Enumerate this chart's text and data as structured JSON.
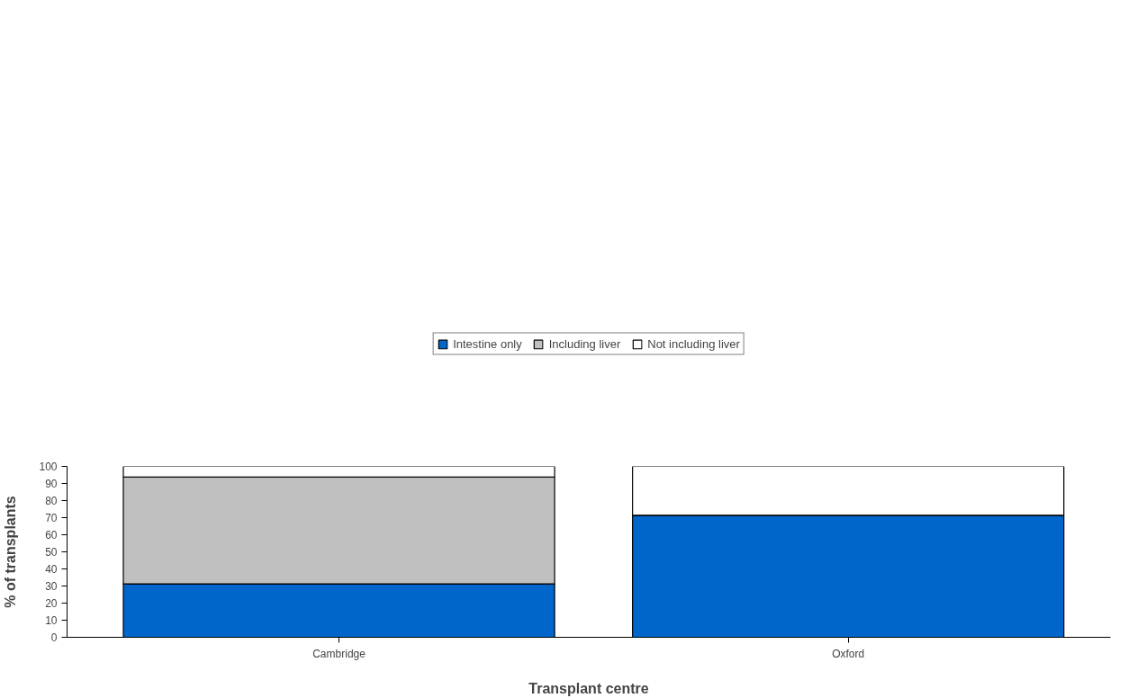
{
  "chart_data": {
    "type": "bar",
    "stacked": true,
    "categories": [
      "Cambridge",
      "Oxford"
    ],
    "series": [
      {
        "name": "Intestine only",
        "color": "#0066cc",
        "values": [
          31.3,
          71.4
        ]
      },
      {
        "name": "Including liver",
        "color": "#c0c0c0",
        "values": [
          62.5,
          0
        ]
      },
      {
        "name": "Not including liver",
        "color": "#ffffff",
        "values": [
          6.2,
          28.6
        ]
      }
    ],
    "xlabel": "Transplant centre",
    "ylabel": "% of transplants",
    "ylim": [
      0,
      100
    ],
    "yticks": [
      0,
      10,
      20,
      30,
      40,
      50,
      60,
      70,
      80,
      90,
      100
    ],
    "grid": false,
    "legend": "top"
  }
}
